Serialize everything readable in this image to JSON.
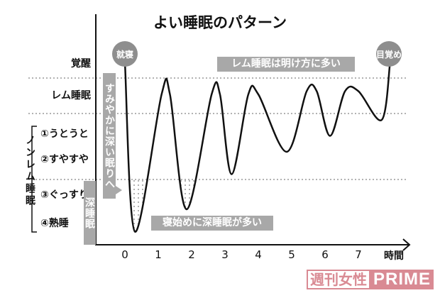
{
  "chart_data": {
    "type": "line",
    "title": "よい睡眠のパターン",
    "xlabel": "時間",
    "x_ticks": [
      "0",
      "1",
      "2",
      "3",
      "4",
      "5",
      "6",
      "7"
    ],
    "xlim": [
      0,
      8.4
    ],
    "y_levels": [
      "覚醒",
      "レム睡眠",
      "①うとうと",
      "②すやすや",
      "③ぐっすり",
      "④熟睡"
    ],
    "y_group_label": "ノンレム睡眠",
    "series": [
      {
        "points": [
          [
            0,
            0
          ],
          [
            0.3,
            5.3
          ],
          [
            1.1,
            1.0
          ],
          [
            1.35,
            1.0
          ],
          [
            1.85,
            4.6
          ],
          [
            2.6,
            1.0
          ],
          [
            2.85,
            1.0
          ],
          [
            3.2,
            3.5
          ],
          [
            3.7,
            1.0
          ],
          [
            4.0,
            1.0
          ],
          [
            4.85,
            2.8
          ],
          [
            5.45,
            0.9
          ],
          [
            5.75,
            0.9
          ],
          [
            6.15,
            2.3
          ],
          [
            6.6,
            0.9
          ],
          [
            7.0,
            0.9
          ],
          [
            7.7,
            1.8
          ],
          [
            7.95,
            0
          ]
        ]
      }
    ],
    "annotations": {
      "sleep_start": "就寝",
      "wake_up": "目覚め",
      "rem_note": "レム睡眠は明け方に多い",
      "deep_note": "寝始めに深睡眠が多い",
      "quick_deep": "すみやかに深い眠りへ",
      "deep_sleep": "深睡眠"
    },
    "colors": {
      "line": "#111111",
      "box": "#a8a8a8",
      "circle": "#8e8e8e",
      "dots": "#999999"
    }
  },
  "logo": {
    "part1": "週刊女性",
    "part2": "PRIME",
    "color": "#d98a93"
  }
}
